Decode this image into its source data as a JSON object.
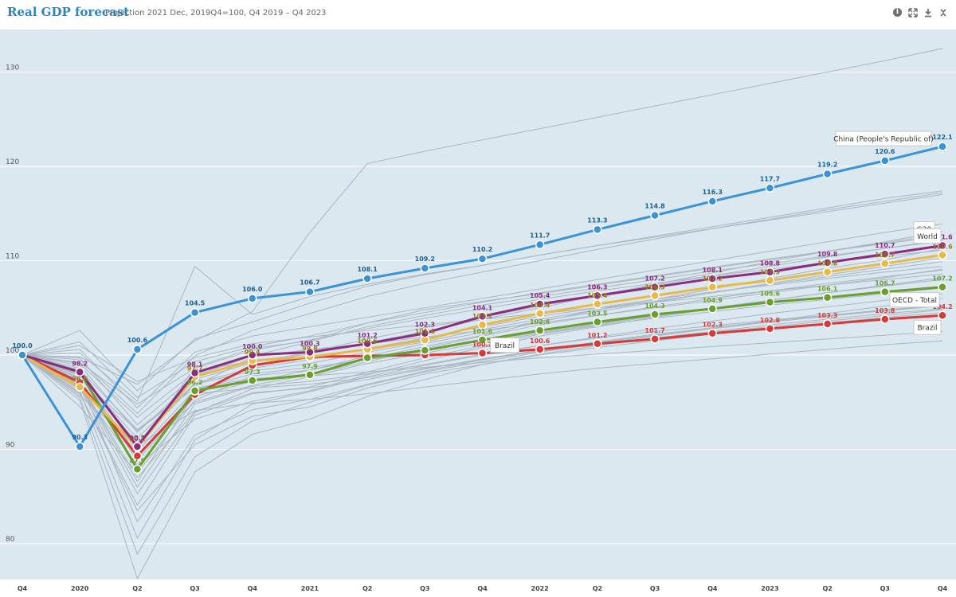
{
  "header": {
    "title": "Real GDP forecast",
    "subtitle": "Projection 2021 Dec, 2019Q4=100, Q4 2019 – Q4 2023",
    "icons": [
      "info-icon",
      "expand-icon",
      "download-icon",
      "collapse-icon"
    ]
  },
  "chart_data": {
    "type": "line",
    "title": "Real GDP forecast",
    "subtitle": "Projection 2021 Dec, 2019Q4=100, Q4 2019 – Q4 2023",
    "xlabel": "",
    "ylabel": "",
    "ylim": [
      74,
      137
    ],
    "yticks": [
      80,
      90,
      100,
      110,
      120,
      130
    ],
    "grid": true,
    "categories": [
      "Q4",
      "2020",
      "Q2",
      "Q3",
      "Q4",
      "2021",
      "Q2",
      "Q3",
      "Q4",
      "2022",
      "Q2",
      "Q3",
      "Q4",
      "2023",
      "Q2",
      "Q3",
      "Q4"
    ],
    "series": [
      {
        "name": "China (People's Republic of)",
        "color": "#3a93d6",
        "values": [
          100.0,
          90.3,
          100.6,
          104.5,
          106.0,
          106.7,
          108.1,
          109.2,
          110.2,
          111.7,
          113.3,
          114.8,
          116.3,
          117.7,
          119.2,
          120.6,
          122.1
        ]
      },
      {
        "name": "G20",
        "color": "#8b2c7e",
        "values": [
          100.0,
          98.2,
          90.3,
          98.1,
          100.0,
          100.3,
          101.2,
          102.3,
          104.1,
          105.4,
          106.3,
          107.2,
          108.1,
          108.8,
          109.8,
          110.7,
          111.6
        ]
      },
      {
        "name": "World",
        "color": "#e7b84a",
        "values": [
          100.0,
          96.6,
          90.2,
          97.7,
          99.4,
          99.8,
          100.6,
          101.6,
          103.2,
          104.4,
          105.4,
          106.3,
          107.2,
          107.9,
          108.8,
          109.7,
          110.6
        ]
      },
      {
        "name": "OECD - Total",
        "color": "#6a9e2f",
        "values": [
          100.0,
          98.2,
          87.9,
          96.2,
          97.3,
          97.9,
          99.7,
          100.5,
          101.6,
          102.6,
          103.5,
          104.3,
          104.9,
          105.6,
          106.1,
          106.7,
          107.2
        ]
      },
      {
        "name": "Brazil",
        "color": "#d63a3a",
        "values": [
          100.0,
          97.1,
          89.3,
          95.8,
          98.9,
          99.8,
          99.9,
          100.0,
          100.2,
          100.6,
          101.2,
          101.7,
          102.3,
          102.8,
          103.3,
          103.8,
          104.2
        ]
      }
    ],
    "background_series": [
      [
        100,
        94.5,
        87.5,
        95.2,
        97.8,
        98.4,
        99.6,
        100.9,
        102.1,
        103.5,
        104.8,
        105.9,
        107.0,
        108.1,
        109.2,
        110.1,
        111.3
      ],
      [
        100,
        97.8,
        91.2,
        97.0,
        98.6,
        99.5,
        100.7,
        101.8,
        103.0,
        104.1,
        105.0,
        105.9,
        106.7,
        107.4,
        108.1,
        108.8,
        109.4
      ],
      [
        100,
        95.9,
        84.1,
        93.6,
        95.9,
        96.6,
        98.2,
        99.7,
        101.0,
        102.2,
        103.1,
        103.9,
        104.6,
        105.3,
        105.9,
        106.5,
        107.1
      ],
      [
        100,
        99.1,
        93.4,
        98.2,
        99.4,
        100.1,
        101.3,
        102.5,
        103.8,
        105.0,
        106.3,
        107.5,
        108.7,
        109.9,
        111.0,
        112.0,
        113.1
      ],
      [
        100,
        96.8,
        86.0,
        94.8,
        96.7,
        97.2,
        98.0,
        99.0,
        100.1,
        101.0,
        101.8,
        102.5,
        103.1,
        103.7,
        104.2,
        104.7,
        105.2
      ],
      [
        100,
        101.4,
        95.5,
        99.3,
        100.9,
        102.0,
        103.4,
        104.5,
        105.6,
        106.6,
        107.5,
        108.4,
        109.3,
        110.2,
        111.0,
        111.8,
        112.6
      ],
      [
        100,
        98.6,
        89.8,
        96.3,
        98.0,
        98.7,
        99.5,
        100.4,
        101.5,
        102.4,
        103.3,
        104.2,
        105.0,
        105.8,
        106.6,
        107.4,
        108.2
      ],
      [
        100,
        97.3,
        82.3,
        91.5,
        94.2,
        95.3,
        96.9,
        98.3,
        99.5,
        100.5,
        101.4,
        102.2,
        102.9,
        103.6,
        104.2,
        104.8,
        105.3
      ],
      [
        100,
        99.7,
        92.6,
        97.8,
        99.9,
        101.4,
        103.0,
        104.2,
        105.3,
        106.2,
        107.1,
        108.0,
        108.9,
        109.7,
        110.5,
        111.3,
        112.1
      ],
      [
        100,
        96.2,
        80.6,
        91.0,
        94.8,
        96.1,
        97.7,
        98.9,
        100.0,
        101.0,
        101.9,
        102.8,
        103.6,
        104.4,
        105.1,
        105.8,
        106.5
      ],
      [
        100,
        98.0,
        88.8,
        95.6,
        97.2,
        98.4,
        99.9,
        101.2,
        102.4,
        103.6,
        104.6,
        105.6,
        106.6,
        107.6,
        108.5,
        109.4,
        110.3
      ],
      [
        100,
        100.6,
        94.4,
        100.3,
        102.0,
        103.0,
        104.0,
        105.0,
        106.0,
        107.0,
        108.0,
        109.0,
        110.0,
        111.0,
        112.0,
        113.0,
        113.9
      ],
      [
        100,
        95.2,
        76.3,
        87.6,
        91.6,
        93.2,
        95.6,
        97.4,
        99.0,
        100.1,
        101.0,
        101.8,
        102.5,
        103.2,
        103.8,
        104.4,
        104.9
      ],
      [
        100,
        97.6,
        90.7,
        96.9,
        98.3,
        99.1,
        100.3,
        101.4,
        102.7,
        103.8,
        104.8,
        105.7,
        106.6,
        107.5,
        108.3,
        109.1,
        109.9
      ],
      [
        100,
        102.6,
        96.2,
        101.7,
        103.5,
        105.5,
        107.3,
        108.5,
        109.5,
        110.6,
        111.6,
        112.6,
        113.6,
        114.6,
        115.6,
        116.6,
        117.4
      ],
      [
        100,
        96.5,
        85.3,
        93.9,
        96.4,
        97.7,
        99.1,
        100.2,
        101.3,
        102.3,
        103.2,
        104.1,
        105.0,
        105.8,
        106.6,
        107.3,
        108.0
      ],
      [
        100,
        98.9,
        91.8,
        97.4,
        99.2,
        100.3,
        101.7,
        102.9,
        104.0,
        105.2,
        106.3,
        107.4,
        108.4,
        109.4,
        110.4,
        111.3,
        112.2
      ],
      [
        100,
        97.0,
        87.0,
        94.0,
        96.0,
        96.5,
        97.4,
        98.5,
        99.6,
        100.5,
        101.3,
        102.1,
        102.8,
        103.5,
        104.1,
        104.7,
        105.3
      ],
      [
        100,
        99.5,
        93.8,
        99.9,
        102.6,
        104.4,
        106.2,
        107.6,
        108.8,
        110.0,
        111.2,
        112.3,
        113.4,
        114.4,
        115.4,
        116.3,
        117.2
      ],
      [
        100,
        95.5,
        78.9,
        89.2,
        93.0,
        95.0,
        96.8,
        98.2,
        99.3,
        100.3,
        101.2,
        102.0,
        102.8,
        103.6,
        104.4,
        105.2,
        106.0
      ],
      [
        100,
        101.0,
        97.2,
        99.7,
        101.2,
        101.9,
        102.6,
        103.2,
        103.8,
        104.4,
        105.0,
        105.6,
        106.2,
        106.8,
        107.4,
        108.0,
        108.6
      ],
      [
        100,
        99.8,
        96.9,
        101.5,
        104.6,
        113.0,
        120.3,
        121.6,
        122.8,
        124.0,
        125.2,
        126.4,
        127.6,
        128.8,
        130.0,
        131.2,
        132.5
      ],
      [
        100,
        96.0,
        83.5,
        90.5,
        93.5,
        94.5,
        96.5,
        98.0,
        99.0,
        100.0,
        100.8,
        101.5,
        102.2,
        102.8,
        103.4,
        104.0,
        104.5
      ],
      [
        100,
        97.5,
        92.0,
        96.5,
        97.5,
        97.8,
        98.2,
        98.7,
        99.2,
        99.7,
        100.1,
        100.5,
        100.9,
        101.3,
        101.7,
        102.1,
        102.5
      ],
      [
        100,
        98.3,
        90.0,
        98.7,
        100.7,
        101.5,
        103.4,
        104.8,
        105.7,
        106.5,
        107.4,
        108.3,
        109.2,
        110.1,
        111.0,
        111.9,
        112.8
      ],
      [
        100,
        96.9,
        86.6,
        95.9,
        96.5,
        96.9,
        97.6,
        98.6,
        99.5,
        100.4,
        101.1,
        101.8,
        102.4,
        103.0,
        103.6,
        104.2,
        104.8
      ],
      [
        100,
        99.2,
        94.8,
        98.6,
        100.5,
        101.6,
        102.8,
        103.9,
        104.9,
        105.9,
        106.8,
        107.6,
        108.4,
        109.1,
        109.8,
        110.5,
        111.1
      ],
      [
        100,
        97.9,
        89.5,
        95.0,
        96.8,
        97.9,
        99.3,
        100.7,
        102.0,
        103.2,
        104.2,
        105.1,
        106.0,
        106.8,
        107.6,
        108.3,
        109.0
      ],
      [
        100,
        96.4,
        88.3,
        93.2,
        95.1,
        96.2,
        97.9,
        99.4,
        100.8,
        102.0,
        103.0,
        104.0,
        104.9,
        105.8,
        106.6,
        107.4,
        108.2
      ],
      [
        100,
        100.2,
        95.1,
        109.4,
        104.3,
        106.2,
        107.5,
        108.6,
        109.5,
        110.6,
        111.6,
        112.5,
        113.4,
        114.3,
        115.2,
        116.1,
        117.0
      ],
      [
        100,
        98.4,
        92.1,
        96.7,
        99.8,
        100.6,
        101.2,
        101.9,
        102.6,
        103.4,
        104.2,
        105.0,
        105.8,
        106.6,
        107.4,
        108.2,
        109.1
      ],
      [
        100,
        95.7,
        90.4,
        94.1,
        94.9,
        95.3,
        95.9,
        96.6,
        97.3,
        98.0,
        98.6,
        99.1,
        99.6,
        100.1,
        100.6,
        101.1,
        101.5
      ]
    ]
  },
  "data_labels": {
    "China (People's Republic of)": [
      "100.0",
      "90.3",
      "100.6",
      "104.5",
      "106.0",
      "106.7",
      "108.1",
      "109.2",
      "110.2",
      "111.7",
      "113.3",
      "114.8",
      "116.3",
      "117.7",
      "119.2",
      "120.6",
      "122.1"
    ],
    "G20": [
      "",
      "98.2",
      "90.3",
      "98.1",
      "100.0",
      "100.3",
      "101.2",
      "102.3",
      "104.1",
      "105.4",
      "106.3",
      "107.2",
      "108.1",
      "108.8",
      "109.8",
      "110.7",
      "111.6"
    ],
    "World": [
      "",
      "96.6",
      "90.2",
      "97.7",
      "99.4",
      "99.8",
      "100.6",
      "101.6",
      "103.2",
      "104.4",
      "105.4",
      "106.3",
      "107.2",
      "107.9",
      "108.8",
      "109.7",
      "110.6"
    ],
    "OECD - Total": [
      "",
      "",
      "87.9",
      "96.2",
      "97.3",
      "97.9",
      "",
      "",
      "101.6",
      "102.6",
      "103.5",
      "104.3",
      "104.9",
      "105.6",
      "106.1",
      "106.7",
      "107.2"
    ],
    "Brazil": [
      "",
      "",
      "",
      "",
      "",
      "",
      "",
      "",
      "100.2",
      "100.6",
      "101.2",
      "101.7",
      "102.3",
      "102.8",
      "103.3",
      "103.8",
      "104.2"
    ]
  },
  "series_labels": [
    {
      "series": "China (People's Republic of)",
      "text": "China (People's Republic of)"
    },
    {
      "series": "G20",
      "text": "G20"
    },
    {
      "series": "World",
      "text": "World"
    },
    {
      "series": "OECD - Total",
      "text": "OECD - Total"
    },
    {
      "series": "Brazil",
      "text": "Brazil"
    },
    {
      "series": "Brazil",
      "text": "Brazil"
    }
  ]
}
